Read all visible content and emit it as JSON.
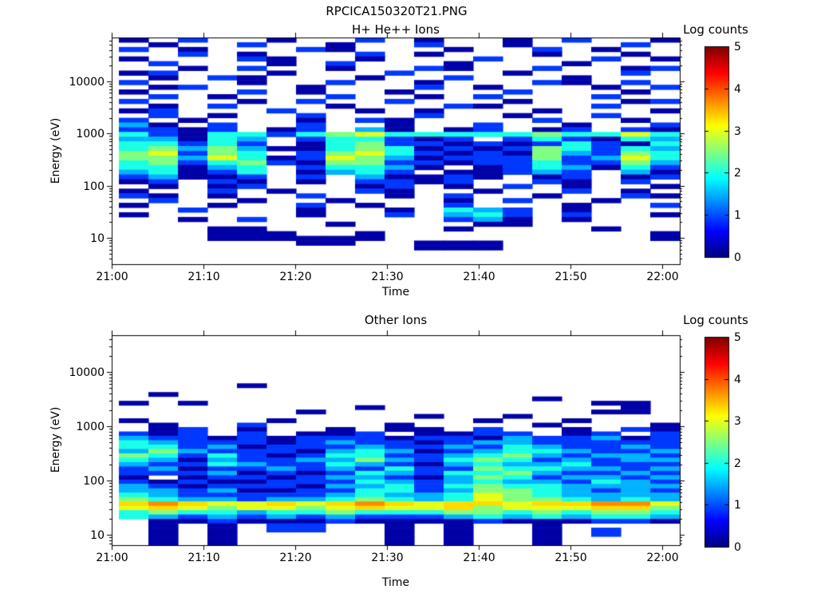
{
  "figure": {
    "title": "RPCICA150320T21.PNG",
    "background": "#ffffff",
    "axis_color": "#000000"
  },
  "colorbar_value_map": {
    "1": 0.2,
    "2": 0.9,
    "3": 1.5,
    "4": 2.0,
    "5": 2.5,
    "6": 3.0,
    "7": 3.3,
    "8": 3.7
  },
  "chart_data": [
    {
      "type": "heatmap",
      "title": "H+ He++ Ions",
      "xlabel": "Time",
      "ylabel": "Energy (eV)",
      "x_ticks": [
        "21:00",
        "21:10",
        "21:20",
        "21:30",
        "21:40",
        "21:50",
        "22:00"
      ],
      "x_tick_minutes": [
        0,
        10,
        20,
        30,
        40,
        50,
        60
      ],
      "x_range_minutes": [
        0,
        61.9
      ],
      "y_scale": "log",
      "y_ticks": [
        10,
        100,
        1000,
        10000
      ],
      "y_range_log10": [
        0.496,
        4.84
      ],
      "time_bin_start_minute": 0.78,
      "time_bin_minutes": 3.217,
      "n_time_bins": 19,
      "n_energy_rows": 48,
      "colorbar": {
        "title": "Log counts",
        "ticks": [
          0,
          1,
          2,
          3,
          4,
          5
        ],
        "range": [
          0,
          5
        ],
        "colormap": "jet"
      },
      "rows": [
        "1.2..1..2.1..1.2..1",
        ".1..2..1..2..1...2.",
        "2.1...21...1..2.1..",
        "..2.1...2.1...1..1.",
        "1...21..1...2...2.1",
        ".2...1.2...1...1...",
        "..1.2..1..21..2..12",
        "12...1...2...1...2.",
        ".1.21...1..2...1...",
        "2...1..2..1...21.2.",
        ".12...1...2.1...1.2",
        "1...2.1..1...2...1.",
        ".2.1...2..1.2...2..",
        "2...1.2..2...1...12",
        ".1.2...1...21...2..",
        "12...2..1.1...1...1",
        ".2.1..2...2..1..2..",
        "2.1...1.21....2..1.",
        "31.2..2..1..2..1..2",
        "2212.12.31.12.12.21",
        "4214424564444454464",
        "33143.244212.242143",
        "44242.1452212124214",
        "4535311454121254243",
        "56254.2564212153254",
        "5536412653122252364",
        "4524521552212242253",
        "44134.24431.1243142",
        "34124.1342.11232.31",
        "23112.2.31121.12.12",
        "12.21.1.2212..21.2.",
        ".1.12...12.1.2.1..1",
        "1..2.1..21..1..2.1.",
        "21.1..2..1.2..1..21",
        ".2..1..1...1.2..1..",
        "1..1..2.1..2...1..2",
        "..2...1..1.432.1...",
        "1.....1..2.342.2..1",
        "..1.2......231.1...",
        ".......1....11.....",
        "...11......1....1..",
        "...111..1.........1",
        "...111111.........1",
        "......11..111......",
        "..........111......",
        "...................",
        "...................",
        "..................."
      ]
    },
    {
      "type": "heatmap",
      "title": "Other Ions",
      "xlabel": "Time",
      "ylabel": "Energy (eV)",
      "x_ticks": [
        "21:00",
        "21:10",
        "21:20",
        "21:30",
        "21:40",
        "21:50",
        "22:00"
      ],
      "x_tick_minutes": [
        0,
        10,
        20,
        30,
        40,
        50,
        60
      ],
      "x_range_minutes": [
        0,
        61.9
      ],
      "y_scale": "log",
      "y_ticks": [
        10,
        100,
        1000,
        10000
      ],
      "y_range_log10": [
        0.809,
        4.676
      ],
      "time_bin_start_minute": 0.78,
      "time_bin_minutes": 3.217,
      "n_time_bins": 19,
      "n_energy_rows": 48,
      "colorbar": {
        "title": "Log counts",
        "ticks": [
          0,
          1,
          2,
          3,
          4,
          5
        ],
        "range": [
          0,
          5
        ],
        "colormap": "jet"
      },
      "rows": [
        "...................",
        "...................",
        "...................",
        "...................",
        "...................",
        "...................",
        "...................",
        "...................",
        "...................",
        "...................",
        "...................",
        "....1..............",
        "...................",
        ".1.................",
        "..............1....",
        "1.1.............11.",
        "........1........1.",
        "......1.........11.",
        "..........1..1.....",
        "1....1......1..1...",
        ".1..2....1....1...1",
        ".12.1..1.11.2..1.21",
        "212.2.112.1122.12.2",
        "3221212221221322312",
        "4322212322123322222",
        "4423122232232432232",
        "3532221343123443223",
        "5424212442234532332",
        "4313223353245423233",
        "3224322432134334222",
        "2312232324225443323",
        "2223121243244532232",
        "1.12212332135423323",
        "2121122243234332432",
        "3212221334245443333",
        "3323112244235543232",
        "4322222343346543333",
        "5433233454346554343",
        "7876676787677677886",
        "6765665676675666775",
        "4544344544455454554",
        "4323232322234343443",
        ".112111211112111221",
        ".1.1.22..1.1..1....",
        ".1.1.22..1.1..1.2..",
        ".1.1.....1.1..1.2..",
        ".1.1.....1.1..1....",
        ".1.1.....1.1..1...."
      ]
    }
  ]
}
